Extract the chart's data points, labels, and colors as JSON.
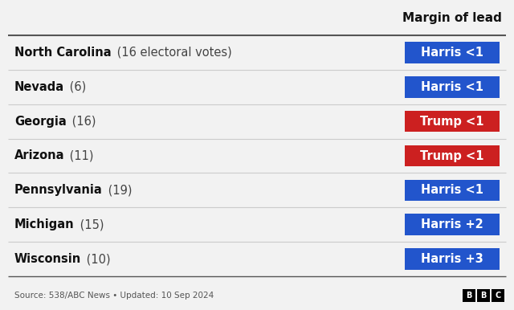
{
  "title": "Margin of lead",
  "rows": [
    {
      "state": "North Carolina",
      "votes": "(16 electoral votes)",
      "label": "Harris <1",
      "color": "#2255cc"
    },
    {
      "state": "Nevada",
      "votes": "(6)",
      "label": "Harris <1",
      "color": "#2255cc"
    },
    {
      "state": "Georgia",
      "votes": "(16)",
      "label": "Trump <1",
      "color": "#cc2020"
    },
    {
      "state": "Arizona",
      "votes": "(11)",
      "label": "Trump <1",
      "color": "#cc2020"
    },
    {
      "state": "Pennsylvania",
      "votes": "(19)",
      "label": "Harris <1",
      "color": "#2255cc"
    },
    {
      "state": "Michigan",
      "votes": "(15)",
      "label": "Harris +2",
      "color": "#2255cc"
    },
    {
      "state": "Wisconsin",
      "votes": "(10)",
      "label": "Harris +3",
      "color": "#2255cc"
    }
  ],
  "source_text": "Source: 538/ABC News • Updated: 10 Sep 2024",
  "bg_color": "#f2f2f2",
  "header_line_color": "#555555",
  "row_line_color": "#cccccc",
  "title_color": "#111111",
  "state_bold_color": "#111111",
  "votes_color": "#444444",
  "source_color": "#555555",
  "figsize": [
    6.4,
    3.86
  ],
  "dpi": 100
}
